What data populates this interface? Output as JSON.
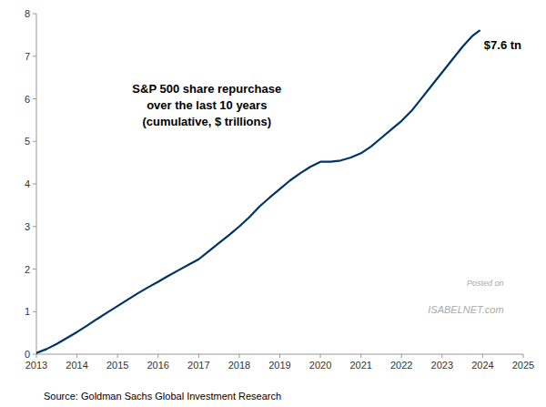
{
  "chart_data": {
    "type": "line",
    "title": "S&P 500 share repurchase\nover the last 10 years\n(cumulative, $ trillions)",
    "annotations": [
      "$7.6 tn",
      "Posted on",
      "ISABELNET.com"
    ],
    "source": "Source: Goldman Sachs Global Investment Research",
    "color": "#003366",
    "grid": false,
    "xlim": [
      2013,
      2025
    ],
    "ylim": [
      0,
      8
    ],
    "xticks": [
      2013,
      2014,
      2015,
      2016,
      2017,
      2018,
      2019,
      2020,
      2021,
      2022,
      2023,
      2024,
      2025
    ],
    "yticks": [
      0,
      1,
      2,
      3,
      4,
      5,
      6,
      7,
      8
    ],
    "x": [
      2013.0,
      2013.25,
      2013.5,
      2013.75,
      2014.0,
      2014.25,
      2014.5,
      2014.75,
      2015.0,
      2015.25,
      2015.5,
      2015.75,
      2016.0,
      2016.25,
      2016.5,
      2016.75,
      2017.0,
      2017.25,
      2017.5,
      2017.75,
      2018.0,
      2018.25,
      2018.5,
      2018.75,
      2019.0,
      2019.25,
      2019.5,
      2019.75,
      2020.0,
      2020.25,
      2020.5,
      2020.75,
      2021.0,
      2021.25,
      2021.5,
      2021.75,
      2022.0,
      2022.25,
      2022.5,
      2022.75,
      2023.0,
      2023.25,
      2023.5,
      2023.75,
      2023.92
    ],
    "values": [
      0.03,
      0.12,
      0.24,
      0.38,
      0.52,
      0.67,
      0.83,
      0.98,
      1.13,
      1.28,
      1.43,
      1.57,
      1.7,
      1.84,
      1.97,
      2.1,
      2.23,
      2.42,
      2.61,
      2.8,
      3.0,
      3.22,
      3.47,
      3.68,
      3.88,
      4.08,
      4.25,
      4.4,
      4.52,
      4.52,
      4.55,
      4.62,
      4.72,
      4.88,
      5.08,
      5.28,
      5.48,
      5.72,
      6.02,
      6.32,
      6.62,
      6.92,
      7.22,
      7.48,
      7.6
    ]
  }
}
